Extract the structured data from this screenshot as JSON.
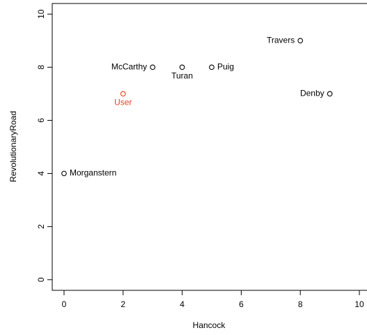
{
  "chart_data": {
    "type": "scatter",
    "xlabel": "Hancock",
    "ylabel": "RevolutionaryRoad",
    "labels": [
      "Morganstern",
      "User",
      "McCarthy",
      "Turan",
      "Puig",
      "Travers",
      "Denby"
    ],
    "x": [
      0,
      2,
      3,
      4,
      5,
      8,
      9
    ],
    "y": [
      4,
      7,
      8,
      8,
      8,
      9,
      7
    ],
    "colors": [
      "#000000",
      "#e8401c",
      "#000000",
      "#000000",
      "#000000",
      "#000000",
      "#000000"
    ],
    "label_positions": [
      "right",
      "below",
      "left",
      "below",
      "right",
      "left",
      "left"
    ],
    "xlim": [
      -0.4,
      10.4
    ],
    "ylim": [
      -0.4,
      10.4
    ],
    "xticks": [
      0,
      2,
      4,
      6,
      8,
      10
    ],
    "yticks": [
      0,
      2,
      4,
      6,
      8,
      10
    ]
  }
}
